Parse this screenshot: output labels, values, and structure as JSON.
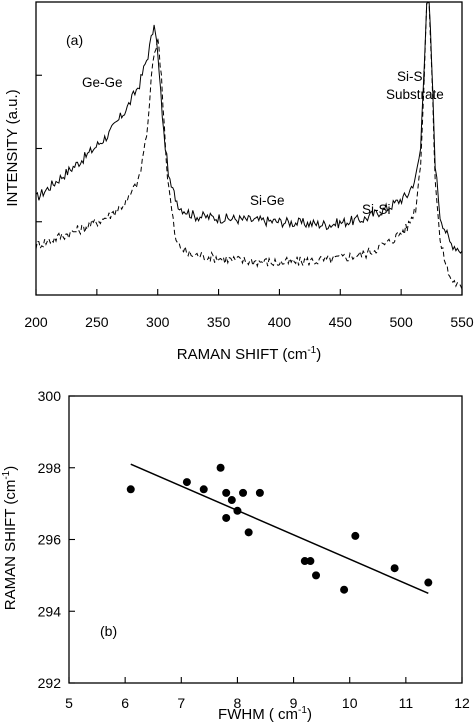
{
  "chart_data": [
    {
      "type": "line",
      "panel_label": "(a)",
      "xlabel": "RAMAN SHIFT (cm",
      "xlabel_sup": "-1",
      "xlabel_tail": ")",
      "ylabel": "INTENSITY (a.u.)",
      "xlim": [
        200,
        550
      ],
      "x_ticks": [
        200,
        250,
        300,
        350,
        400,
        450,
        500,
        550
      ],
      "x_tick_labels": [
        "200",
        "250",
        "300",
        "350",
        "400",
        "450",
        "500",
        "550"
      ],
      "ylim": [
        0,
        1
      ],
      "y_tick_labels": [],
      "annotations": [
        "Ge-Ge",
        "Si-Ge",
        "Si-Si",
        "Si-Si",
        "Substrate"
      ],
      "series": [
        {
          "style": "solid",
          "x": [
            200,
            220,
            240,
            260,
            275,
            285,
            292,
            296,
            298,
            300,
            305,
            310,
            318,
            330,
            360,
            400,
            440,
            470,
            490,
            505,
            512,
            516,
            519,
            521,
            523,
            525,
            528,
            532,
            540,
            550
          ],
          "y": [
            0.33,
            0.4,
            0.47,
            0.55,
            0.64,
            0.72,
            0.82,
            0.9,
            0.91,
            0.82,
            0.55,
            0.38,
            0.3,
            0.27,
            0.26,
            0.25,
            0.24,
            0.26,
            0.3,
            0.34,
            0.4,
            0.5,
            0.8,
            1.0,
            1.0,
            0.8,
            0.45,
            0.27,
            0.18,
            0.15
          ]
        },
        {
          "style": "dashed",
          "x": [
            200,
            220,
            240,
            260,
            275,
            285,
            292,
            296,
            300,
            303,
            308,
            315,
            325,
            360,
            400,
            440,
            470,
            490,
            505,
            512,
            516,
            519,
            521,
            523,
            525,
            528,
            532,
            540,
            550
          ],
          "y": [
            0.17,
            0.2,
            0.23,
            0.27,
            0.32,
            0.4,
            0.58,
            0.8,
            0.88,
            0.75,
            0.4,
            0.18,
            0.14,
            0.12,
            0.11,
            0.12,
            0.14,
            0.18,
            0.23,
            0.3,
            0.45,
            0.75,
            1.0,
            1.0,
            0.78,
            0.4,
            0.18,
            0.06,
            0.02
          ]
        }
      ]
    },
    {
      "type": "scatter",
      "panel_label": "(b)",
      "xlabel": "FWHM ( cm",
      "xlabel_sup": "-1",
      "xlabel_tail": ")",
      "ylabel": "RAMAN SHIFT (cm",
      "ylabel_sup": "-1",
      "ylabel_tail": ")",
      "xlim": [
        5,
        12
      ],
      "ylim": [
        292,
        300
      ],
      "x_ticks": [
        5,
        6,
        7,
        8,
        9,
        10,
        11,
        12
      ],
      "x_tick_labels": [
        "5",
        "6",
        "7",
        "8",
        "9",
        "10",
        "11",
        "12"
      ],
      "y_ticks": [
        292,
        294,
        296,
        298,
        300
      ],
      "y_tick_labels": [
        "292",
        "294",
        "296",
        "298",
        "300"
      ],
      "points": [
        {
          "x": 6.1,
          "y": 297.4
        },
        {
          "x": 7.1,
          "y": 297.6
        },
        {
          "x": 7.4,
          "y": 297.4
        },
        {
          "x": 7.7,
          "y": 298.0
        },
        {
          "x": 7.8,
          "y": 297.3
        },
        {
          "x": 7.8,
          "y": 296.6
        },
        {
          "x": 7.9,
          "y": 297.1
        },
        {
          "x": 8.0,
          "y": 296.8
        },
        {
          "x": 8.1,
          "y": 297.3
        },
        {
          "x": 8.2,
          "y": 296.2
        },
        {
          "x": 8.4,
          "y": 297.3
        },
        {
          "x": 9.2,
          "y": 295.4
        },
        {
          "x": 9.3,
          "y": 295.4
        },
        {
          "x": 9.4,
          "y": 295.0
        },
        {
          "x": 9.9,
          "y": 294.6
        },
        {
          "x": 10.1,
          "y": 296.1
        },
        {
          "x": 10.8,
          "y": 295.2
        },
        {
          "x": 11.4,
          "y": 294.8
        }
      ],
      "fit_line": {
        "x": [
          6.1,
          11.4
        ],
        "y": [
          298.1,
          294.5
        ]
      }
    }
  ]
}
